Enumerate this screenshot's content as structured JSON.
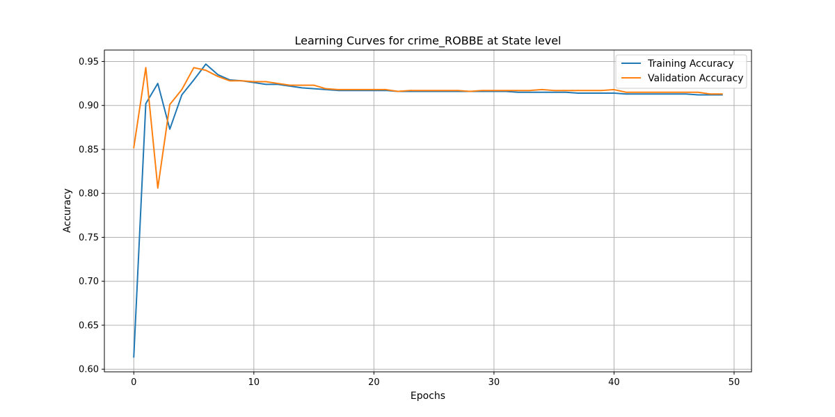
{
  "chart_data": {
    "type": "line",
    "title": "Learning Curves for crime_ROBBE at State level",
    "xlabel": "Epochs",
    "ylabel": "Accuracy",
    "xlim": [
      -2.45,
      51.45
    ],
    "ylim": [
      0.597,
      0.963
    ],
    "xticks": [
      0,
      10,
      20,
      30,
      40,
      50
    ],
    "yticks": [
      0.6,
      0.65,
      0.7,
      0.75,
      0.8,
      0.85,
      0.9,
      0.95
    ],
    "grid": true,
    "legend_position": "top-right",
    "x": [
      0,
      1,
      2,
      3,
      4,
      5,
      6,
      7,
      8,
      9,
      10,
      11,
      12,
      13,
      14,
      15,
      16,
      17,
      18,
      19,
      20,
      21,
      22,
      23,
      24,
      25,
      26,
      27,
      28,
      29,
      30,
      31,
      32,
      33,
      34,
      35,
      36,
      37,
      38,
      39,
      40,
      41,
      42,
      43,
      44,
      45,
      46,
      47,
      48,
      49
    ],
    "series": [
      {
        "name": "Training Accuracy",
        "color": "#1f77b4",
        "values": [
          0.614,
          0.902,
          0.925,
          0.873,
          0.912,
          0.929,
          0.947,
          0.935,
          0.929,
          0.928,
          0.926,
          0.924,
          0.924,
          0.922,
          0.92,
          0.919,
          0.918,
          0.917,
          0.917,
          0.917,
          0.917,
          0.917,
          0.916,
          0.916,
          0.916,
          0.916,
          0.916,
          0.916,
          0.916,
          0.916,
          0.916,
          0.916,
          0.915,
          0.915,
          0.915,
          0.915,
          0.915,
          0.914,
          0.914,
          0.914,
          0.914,
          0.913,
          0.913,
          0.913,
          0.913,
          0.913,
          0.913,
          0.912,
          0.912,
          0.912
        ]
      },
      {
        "name": "Validation Accuracy",
        "color": "#ff7f0e",
        "values": [
          0.852,
          0.943,
          0.806,
          0.901,
          0.918,
          0.943,
          0.94,
          0.933,
          0.928,
          0.928,
          0.927,
          0.927,
          0.925,
          0.923,
          0.923,
          0.923,
          0.919,
          0.918,
          0.918,
          0.918,
          0.918,
          0.918,
          0.916,
          0.917,
          0.917,
          0.917,
          0.917,
          0.917,
          0.916,
          0.917,
          0.917,
          0.917,
          0.917,
          0.917,
          0.918,
          0.917,
          0.917,
          0.917,
          0.917,
          0.917,
          0.918,
          0.915,
          0.915,
          0.915,
          0.915,
          0.915,
          0.915,
          0.915,
          0.913,
          0.913
        ]
      }
    ]
  }
}
